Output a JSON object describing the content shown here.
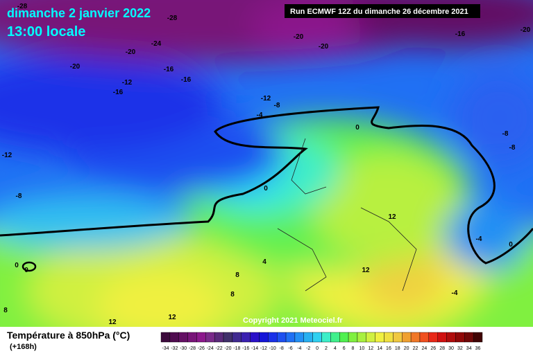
{
  "header": {
    "date": "dimanche 2 janvier 2022",
    "time": "13:00 locale",
    "run": "Run ECMWF 12Z du dimanche 26 décembre 2021"
  },
  "copyright": "Copyright 2021 Meteociel.fr",
  "footer": {
    "title": "Température à 850hPa (°C)",
    "lead": "(+168h)"
  },
  "scale": {
    "labels": [
      -34,
      -32,
      -30,
      -28,
      -26,
      -24,
      -22,
      -20,
      -18,
      -16,
      -14,
      -12,
      -10,
      -8,
      -6,
      -4,
      -2,
      0,
      2,
      4,
      6,
      8,
      10,
      12,
      14,
      16,
      18,
      20,
      22,
      24,
      26,
      28,
      30,
      32,
      34,
      36
    ],
    "colors": [
      "#3c0a3c",
      "#500c50",
      "#641064",
      "#781478",
      "#8c188c",
      "#7a2a8a",
      "#5a2a7a",
      "#40306a",
      "#402a90",
      "#3a20b0",
      "#2a10c8",
      "#1414d8",
      "#1a30e8",
      "#1e50f0",
      "#2070f4",
      "#2490f4",
      "#28b0f0",
      "#30d0f0",
      "#3ceec8",
      "#40f08c",
      "#50f050",
      "#80f040",
      "#a8f040",
      "#d0f040",
      "#f0f040",
      "#f0e040",
      "#f0c840",
      "#f0a030",
      "#f07828",
      "#f05020",
      "#e82818",
      "#d01010",
      "#b00c0c",
      "#900808",
      "#700808",
      "#400404"
    ]
  },
  "map_labels": [
    -28,
    -28,
    -24,
    -20,
    -20,
    -16,
    -12,
    -16,
    -16,
    -20,
    -20,
    -16,
    -20,
    -12,
    -8,
    -4,
    -12,
    -8,
    0,
    -8,
    -8,
    0,
    12,
    -4,
    0,
    0,
    0,
    4,
    8,
    12,
    8,
    -4,
    12,
    12,
    8
  ]
}
